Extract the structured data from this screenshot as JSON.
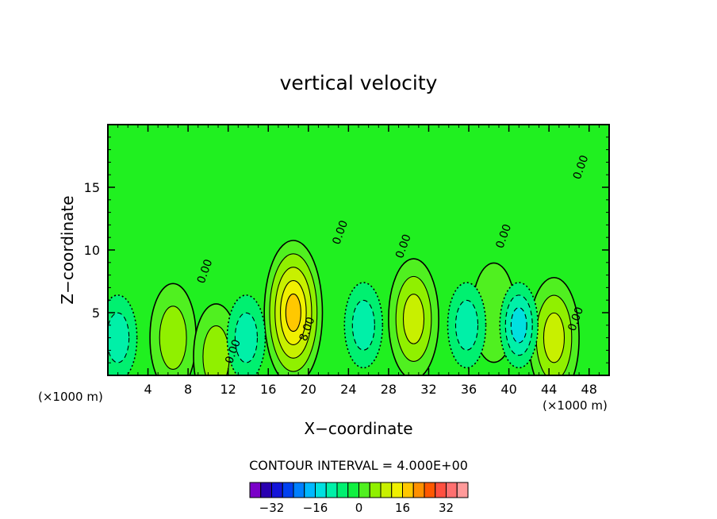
{
  "chart_data": {
    "type": "contour",
    "title": "vertical velocity",
    "xlabel": "X−coordinate",
    "ylabel": "Z−coordinate",
    "x_unit_left": "(×1000 m)",
    "x_unit_right": "(×1000 m)",
    "xlim": [
      0,
      50
    ],
    "ylim": [
      0,
      20
    ],
    "x_ticks": [
      4,
      8,
      12,
      16,
      20,
      24,
      28,
      32,
      36,
      40,
      44,
      48
    ],
    "y_ticks": [
      5,
      10,
      15
    ],
    "contour_interval_text": "CONTOUR INTERVAL = 4.000E+00",
    "contour_labels": [
      {
        "text": "8.00",
        "x": 20.2,
        "z": 3.6
      },
      {
        "text": "0.00",
        "x": 23.5,
        "z": 11.3
      },
      {
        "text": "0.00",
        "x": 29.8,
        "z": 10.2
      },
      {
        "text": "0.00",
        "x": 10.0,
        "z": 8.2
      },
      {
        "text": "0.00",
        "x": 12.8,
        "z": 1.8
      },
      {
        "text": "0.00",
        "x": 39.8,
        "z": 11.0
      },
      {
        "text": "0.00",
        "x": 47.5,
        "z": 16.5
      },
      {
        "text": "0.00",
        "x": 47.0,
        "z": 4.4
      }
    ],
    "features": [
      {
        "kind": "updraft",
        "x": 18.5,
        "z": 5.0,
        "peak": 18
      },
      {
        "kind": "updraft",
        "x": 30.5,
        "z": 4.5,
        "peak": 10
      },
      {
        "kind": "updraft",
        "x": 44.5,
        "z": 3.0,
        "peak": 10
      },
      {
        "kind": "updraft",
        "x": 6.5,
        "z": 3.0,
        "peak": 6
      },
      {
        "kind": "updraft",
        "x": 10.8,
        "z": 1.5,
        "peak": 5
      },
      {
        "kind": "updraft",
        "x": 38.5,
        "z": 5.0,
        "peak": 3
      },
      {
        "kind": "downdraft",
        "x": 1.0,
        "z": 3.0,
        "peak": -6
      },
      {
        "kind": "downdraft",
        "x": 13.8,
        "z": 3.0,
        "peak": -6
      },
      {
        "kind": "downdraft",
        "x": 25.5,
        "z": 4.0,
        "peak": -8
      },
      {
        "kind": "downdraft",
        "x": 35.8,
        "z": 4.0,
        "peak": -8
      },
      {
        "kind": "downdraft",
        "x": 41.0,
        "z": 4.0,
        "peak": -11
      }
    ],
    "colorbar": {
      "tick_labels": [
        "−32",
        "−16",
        "0",
        "16",
        "32"
      ],
      "tick_values": [
        -32,
        -16,
        0,
        16,
        32
      ],
      "levels": [
        -36,
        -32,
        -28,
        -24,
        -20,
        -16,
        -12,
        -8,
        -4,
        0,
        4,
        8,
        12,
        16,
        20,
        24,
        28,
        32,
        36
      ],
      "colors": [
        "#7a00c8",
        "#2a00b0",
        "#1414d8",
        "#0040f0",
        "#0080ff",
        "#00b8ff",
        "#00e0e0",
        "#00f0a8",
        "#00f070",
        "#10f040",
        "#50f020",
        "#90f000",
        "#c8f000",
        "#f0f000",
        "#ffc800",
        "#ff9000",
        "#ff5800",
        "#ff5040",
        "#ff7070",
        "#ff9a9a"
      ]
    },
    "grid": false,
    "legend": "colorbar-bottom"
  },
  "colors": {
    "background": "#20f020",
    "axis": "#000000"
  }
}
